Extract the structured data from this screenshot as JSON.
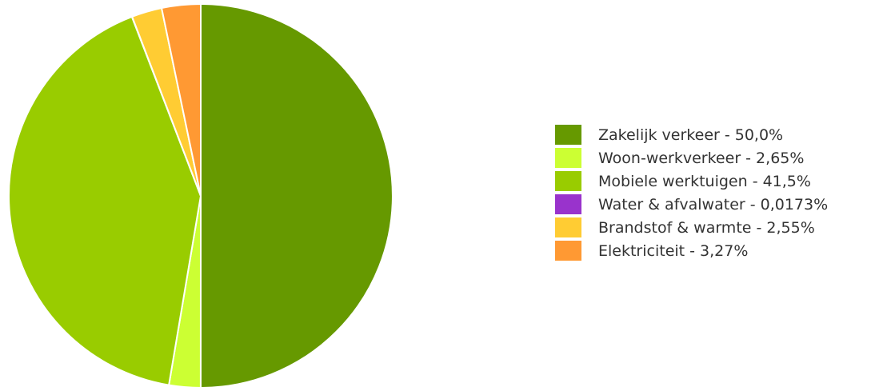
{
  "chart_data": {
    "type": "pie",
    "title": "",
    "legend_position": "right",
    "start_angle_deg": 0,
    "direction": "clockwise",
    "slices": [
      {
        "label": "Zakelijk verkeer - 50,0%",
        "value": 50.0,
        "color": "#669900"
      },
      {
        "label": "Woon-werkverkeer - 2,65%",
        "value": 2.65,
        "color": "#ccff33"
      },
      {
        "label": "Mobiele werktuigen - 41,5%",
        "value": 41.5,
        "color": "#99cc00"
      },
      {
        "label": "Water & afvalwater - 0,0173%",
        "value": 0.0173,
        "color": "#9933cc"
      },
      {
        "label": "Brandstof & warmte - 2,55%",
        "value": 2.55,
        "color": "#ffcc33"
      },
      {
        "label": "Elektriciteit - 3,27%",
        "value": 3.27,
        "color": "#ff9933"
      }
    ]
  }
}
